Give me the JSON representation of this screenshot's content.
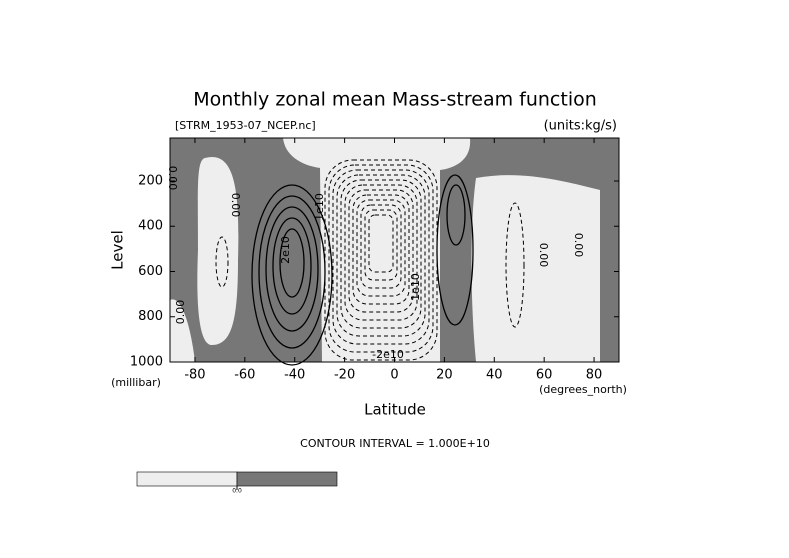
{
  "chart_data": {
    "type": "contour",
    "title": "Monthly zonal mean Mass-stream function",
    "subtitle": "[STRM_1953-07_NCEP.nc]",
    "units": "(units:kg/s)",
    "x_label": "Latitude",
    "x_units": "(degrees_north)",
    "y_label": "Level",
    "y_units": "(millibar)",
    "xlim": [
      -90,
      90
    ],
    "xticks": [
      -80,
      -60,
      -40,
      -20,
      0,
      20,
      40,
      60,
      80
    ],
    "ylim": [
      1000,
      10
    ],
    "yticks": [
      200,
      400,
      600,
      800,
      1000
    ],
    "contour_interval": "CONTOUR INTERVAL = 1.000E+10",
    "contour_labels": [
      "0.00",
      "0.00",
      "1e10",
      "2e10",
      "1e10",
      "0.00",
      "0.00",
      "0.00",
      "-2e10"
    ],
    "colorbar": {
      "colors": [
        "#eeeeee",
        "#777777"
      ],
      "ticks": [
        {
          "value": 0,
          "label": "0.0"
        }
      ]
    }
  }
}
